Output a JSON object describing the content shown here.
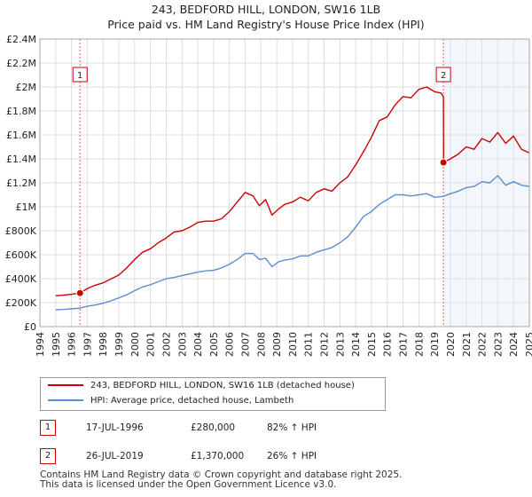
{
  "title_line1": "243, BEDFORD HILL, LONDON, SW16 1LB",
  "title_line2": "Price paid vs. HM Land Registry's House Price Index (HPI)",
  "chart_data": {
    "type": "line",
    "xlim": [
      1994.0,
      2025.0
    ],
    "ylim": [
      0,
      2400000
    ],
    "y_ticks": [
      {
        "value": 0,
        "label": "£0"
      },
      {
        "value": 200000,
        "label": "£200K"
      },
      {
        "value": 400000,
        "label": "£400K"
      },
      {
        "value": 600000,
        "label": "£600K"
      },
      {
        "value": 800000,
        "label": "£800K"
      },
      {
        "value": 1000000,
        "label": "£1M"
      },
      {
        "value": 1200000,
        "label": "£1.2M"
      },
      {
        "value": 1400000,
        "label": "£1.4M"
      },
      {
        "value": 1600000,
        "label": "£1.6M"
      },
      {
        "value": 1800000,
        "label": "£1.8M"
      },
      {
        "value": 2000000,
        "label": "£2M"
      },
      {
        "value": 2200000,
        "label": "£2.2M"
      },
      {
        "value": 2400000,
        "label": "£2.4M"
      }
    ],
    "x_ticks": [
      "1994",
      "1995",
      "1996",
      "1997",
      "1998",
      "1999",
      "2000",
      "2001",
      "2002",
      "2003",
      "2004",
      "2005",
      "2006",
      "2007",
      "2008",
      "2009",
      "2010",
      "2011",
      "2012",
      "2013",
      "2014",
      "2015",
      "2016",
      "2017",
      "2018",
      "2019",
      "2020",
      "2021",
      "2022",
      "2023",
      "2024",
      "2025"
    ],
    "series": [
      {
        "name": "243, BEDFORD HILL, LONDON, SW16 1LB (detached house)",
        "color": "#cc0000",
        "x": [
          1995.0,
          1995.5,
          1996.0,
          1996.54,
          1997.0,
          1997.5,
          1998.0,
          1998.5,
          1999.0,
          1999.5,
          2000.0,
          2000.5,
          2001.0,
          2001.5,
          2002.0,
          2002.5,
          2003.0,
          2003.5,
          2004.0,
          2004.5,
          2005.0,
          2005.5,
          2006.0,
          2006.5,
          2007.0,
          2007.5,
          2007.9,
          2008.3,
          2008.7,
          2009.1,
          2009.5,
          2010.0,
          2010.5,
          2011.0,
          2011.5,
          2012.0,
          2012.5,
          2013.0,
          2013.5,
          2014.0,
          2014.5,
          2015.0,
          2015.5,
          2016.0,
          2016.5,
          2017.0,
          2017.5,
          2018.0,
          2018.5,
          2019.0,
          2019.4,
          2019.56,
          2019.57,
          2020.0,
          2020.5,
          2021.0,
          2021.5,
          2022.0,
          2022.5,
          2023.0,
          2023.5,
          2024.0,
          2024.5,
          2025.0
        ],
        "y": [
          258000,
          262000,
          270000,
          280000,
          318000,
          345000,
          365000,
          398000,
          430000,
          490000,
          560000,
          620000,
          650000,
          700000,
          740000,
          790000,
          800000,
          830000,
          870000,
          880000,
          880000,
          900000,
          960000,
          1040000,
          1120000,
          1090000,
          1010000,
          1060000,
          930000,
          980000,
          1020000,
          1040000,
          1080000,
          1050000,
          1120000,
          1150000,
          1130000,
          1200000,
          1250000,
          1350000,
          1460000,
          1580000,
          1720000,
          1750000,
          1850000,
          1920000,
          1910000,
          1980000,
          2000000,
          1960000,
          1950000,
          1920000,
          1370000,
          1400000,
          1440000,
          1500000,
          1480000,
          1570000,
          1540000,
          1620000,
          1530000,
          1590000,
          1480000,
          1450000
        ]
      },
      {
        "name": "HPI: Average price, detached house, Lambeth",
        "color": "#5b8fd0",
        "x": [
          1995.0,
          1995.5,
          1996.0,
          1996.54,
          1997.0,
          1997.5,
          1998.0,
          1998.5,
          1999.0,
          1999.5,
          2000.0,
          2000.5,
          2001.0,
          2001.5,
          2002.0,
          2002.5,
          2003.0,
          2003.5,
          2004.0,
          2004.5,
          2005.0,
          2005.5,
          2006.0,
          2006.5,
          2007.0,
          2007.5,
          2007.9,
          2008.3,
          2008.7,
          2009.1,
          2009.5,
          2010.0,
          2010.5,
          2011.0,
          2011.5,
          2012.0,
          2012.5,
          2013.0,
          2013.5,
          2014.0,
          2014.5,
          2015.0,
          2015.5,
          2016.0,
          2016.5,
          2017.0,
          2017.5,
          2018.0,
          2018.5,
          2019.0,
          2019.56,
          2020.0,
          2020.5,
          2021.0,
          2021.5,
          2022.0,
          2022.5,
          2023.0,
          2023.5,
          2024.0,
          2024.5,
          2025.0
        ],
        "y": [
          140000,
          143000,
          148000,
          154000,
          170000,
          180000,
          195000,
          215000,
          240000,
          265000,
          300000,
          330000,
          350000,
          375000,
          400000,
          410000,
          425000,
          440000,
          455000,
          465000,
          470000,
          490000,
          520000,
          560000,
          610000,
          610000,
          560000,
          570000,
          500000,
          540000,
          555000,
          565000,
          590000,
          590000,
          620000,
          640000,
          660000,
          700000,
          750000,
          830000,
          920000,
          960000,
          1020000,
          1060000,
          1100000,
          1100000,
          1090000,
          1100000,
          1110000,
          1080000,
          1087000,
          1110000,
          1130000,
          1160000,
          1170000,
          1210000,
          1200000,
          1260000,
          1180000,
          1210000,
          1180000,
          1170000
        ]
      }
    ],
    "sales": [
      {
        "id": "1",
        "x": 1996.54,
        "y": 280000
      },
      {
        "id": "2",
        "x": 2019.56,
        "y": 1370000
      }
    ]
  },
  "legend": {
    "red_label": "243, BEDFORD HILL, LONDON, SW16 1LB (detached house)",
    "blue_label": "HPI: Average price, detached house, Lambeth"
  },
  "sales_table": [
    {
      "id": "1",
      "date": "17-JUL-1996",
      "price": "£280,000",
      "hpi": "82% ↑ HPI"
    },
    {
      "id": "2",
      "date": "26-JUL-2019",
      "price": "£1,370,000",
      "hpi": "26% ↑ HPI"
    }
  ],
  "footer_line1": "Contains HM Land Registry data © Crown copyright and database right 2025.",
  "footer_line2": "This data is licensed under the Open Government Licence v3.0."
}
